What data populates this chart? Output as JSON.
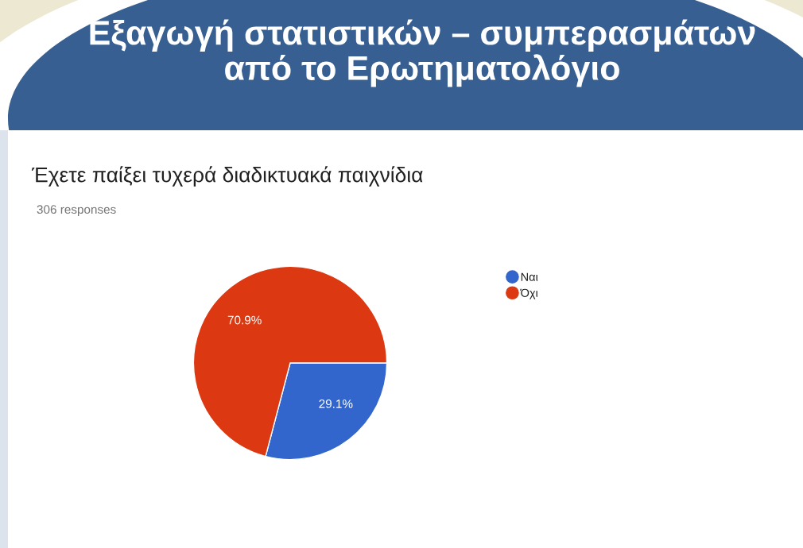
{
  "chart_data": {
    "type": "pie",
    "title": "Εξαγωγή στατιστικών – συμπερασμάτων\nαπό το Ερωτηματολόγιο",
    "subtitle": "Έχετε παίξει τυχερά διαδικτυακά παιχνίδια",
    "annotations": [
      "306 responses"
    ],
    "categories": [
      "Ναι",
      "Όχι"
    ],
    "values": [
      29.1,
      70.9
    ],
    "colors": [
      "#3366cc",
      "#dc3912"
    ],
    "value_labels": [
      "29.1%",
      "70.9%"
    ],
    "legend": "top right"
  }
}
